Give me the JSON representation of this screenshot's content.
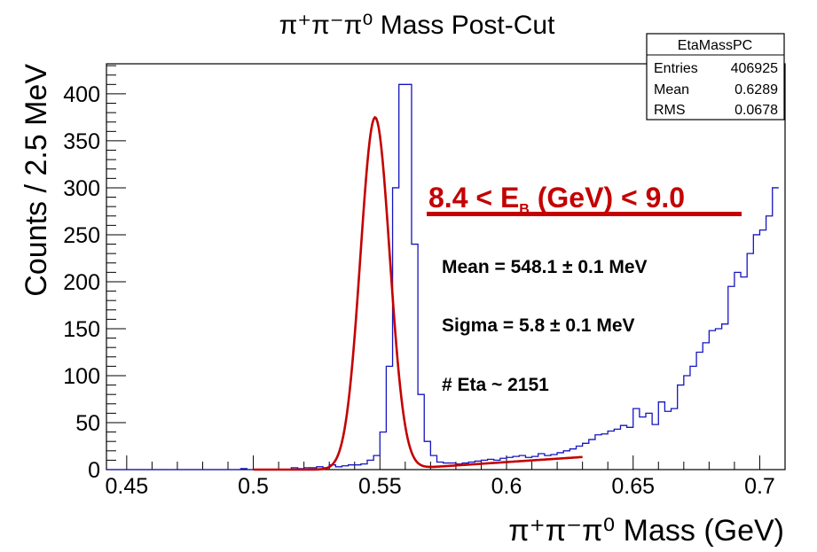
{
  "chart_data": {
    "type": "histogram",
    "title": "π⁺π⁻π⁰ Mass Post-Cut",
    "xlabel": "π⁺π⁻π⁰ Mass (GeV)",
    "ylabel": "Counts / 2.5 MeV",
    "xlim": [
      0.442,
      0.71
    ],
    "ylim": [
      0,
      432
    ],
    "x_ticks": [
      0.45,
      0.5,
      0.55,
      0.6,
      0.65,
      0.7
    ],
    "x_tick_labels": [
      "0.45",
      "0.5",
      "0.55",
      "0.6",
      "0.65",
      "0.7"
    ],
    "y_ticks": [
      0,
      50,
      100,
      150,
      200,
      250,
      300,
      350,
      400
    ],
    "bin_width": 0.0025,
    "bin_start": 0.4425,
    "histogram_counts": [
      0,
      0,
      0,
      0,
      0,
      0,
      0,
      0,
      0,
      0,
      0,
      0,
      0,
      0,
      0,
      0,
      0,
      0,
      0,
      0,
      0,
      1,
      0,
      0,
      0,
      0,
      0,
      0,
      0,
      2,
      1,
      2,
      2,
      3,
      2,
      5,
      3,
      4,
      5,
      5,
      6,
      10,
      15,
      40,
      110,
      300,
      410,
      410,
      240,
      80,
      30,
      15,
      8,
      7,
      7,
      6,
      7,
      8,
      9,
      10,
      11,
      10,
      12,
      13,
      14,
      15,
      13,
      14,
      17,
      15,
      16,
      18,
      20,
      22,
      25,
      28,
      32,
      37,
      38,
      41,
      43,
      47,
      45,
      65,
      56,
      60,
      48,
      72,
      62,
      65,
      90,
      100,
      110,
      125,
      135,
      148,
      150,
      155,
      195,
      210,
      205,
      230,
      250,
      255,
      270,
      300
    ],
    "histogram_color": "#1515c0",
    "fit": {
      "type": "gaussian_plus_linear",
      "mean": 0.5481,
      "sigma": 0.0058,
      "amplitude": 375,
      "background_slope": 180,
      "background_intercept": -100,
      "x_range": [
        0.5,
        0.63
      ],
      "color": "#c40000"
    },
    "stats_box": {
      "title": "EtaMassPC",
      "rows": [
        {
          "label": "Entries",
          "value": "406925"
        },
        {
          "label": "Mean",
          "value": "0.6289"
        },
        {
          "label": "RMS",
          "value": "0.0678"
        }
      ]
    },
    "annotations": {
      "energy_range": "8.4 < E_B (GeV) < 9.0",
      "energy_range_parts": {
        "pre": "8.4 < E",
        "sub": "B",
        "post": " (GeV) < 9.0"
      },
      "mean": "Mean = 548.1 ± 0.1 MeV",
      "sigma": "Sigma = 5.8  ± 0.1 MeV",
      "count": "# Eta ~ 2151"
    },
    "grid": false
  }
}
